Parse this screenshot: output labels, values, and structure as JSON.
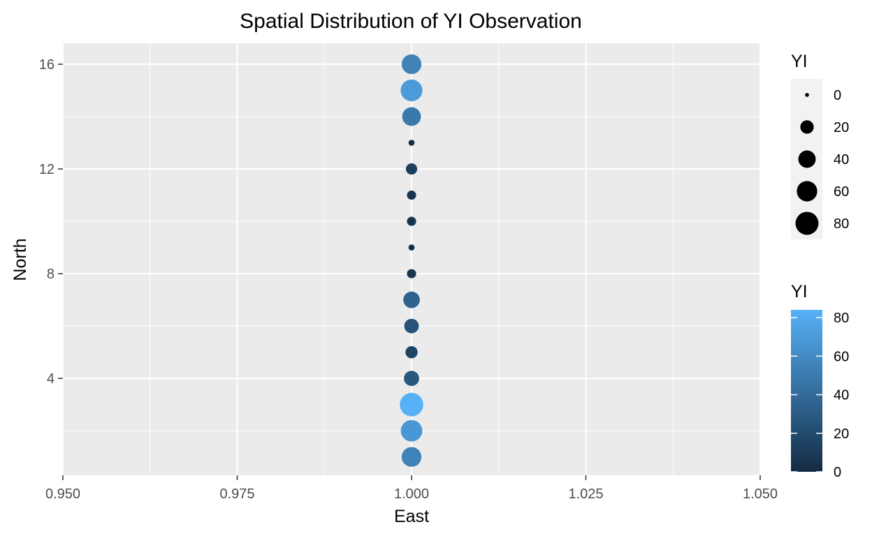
{
  "chart_data": {
    "type": "scatter",
    "title": "Spatial Distribution of YI Observation",
    "xlabel": "East",
    "ylabel": "North",
    "xlim": [
      0.95,
      1.05
    ],
    "ylim": [
      0.3,
      16.8
    ],
    "x_ticks": [
      0.95,
      0.975,
      1.0,
      1.025,
      1.05
    ],
    "x_tick_labels": [
      "0.950",
      "0.975",
      "1.000",
      "1.025",
      "1.050"
    ],
    "y_ticks": [
      4,
      8,
      12,
      16
    ],
    "y_tick_labels": [
      "4",
      "8",
      "12",
      "16"
    ],
    "grid": true,
    "points": [
      {
        "x": 1.0,
        "y": 1,
        "yi": 55
      },
      {
        "x": 1.0,
        "y": 2,
        "yi": 68
      },
      {
        "x": 1.0,
        "y": 3,
        "yi": 84
      },
      {
        "x": 1.0,
        "y": 4,
        "yi": 28
      },
      {
        "x": 1.0,
        "y": 5,
        "yi": 15
      },
      {
        "x": 1.0,
        "y": 6,
        "yi": 25
      },
      {
        "x": 1.0,
        "y": 7,
        "yi": 35
      },
      {
        "x": 1.0,
        "y": 8,
        "yi": 6
      },
      {
        "x": 1.0,
        "y": 9,
        "yi": 1
      },
      {
        "x": 1.0,
        "y": 10,
        "yi": 6
      },
      {
        "x": 1.0,
        "y": 11,
        "yi": 6
      },
      {
        "x": 1.0,
        "y": 12,
        "yi": 12
      },
      {
        "x": 1.0,
        "y": 13,
        "yi": 1
      },
      {
        "x": 1.0,
        "y": 14,
        "yi": 48
      },
      {
        "x": 1.0,
        "y": 15,
        "yi": 70
      },
      {
        "x": 1.0,
        "y": 16,
        "yi": 55
      }
    ],
    "size_legend": {
      "title": "YI",
      "values": [
        0,
        20,
        40,
        60,
        80
      ],
      "labels": [
        "0",
        "20",
        "40",
        "60",
        "80"
      ]
    },
    "color_legend": {
      "title": "YI",
      "range": [
        0,
        84
      ],
      "ticks": [
        0,
        20,
        40,
        60,
        80
      ],
      "labels": [
        "0",
        "20",
        "40",
        "60",
        "80"
      ],
      "low_color": "#132B43",
      "high_color": "#56B1F7"
    },
    "panel_color": "#EBEBEB",
    "grid_color": "#FFFFFF",
    "legend_position": "right"
  }
}
